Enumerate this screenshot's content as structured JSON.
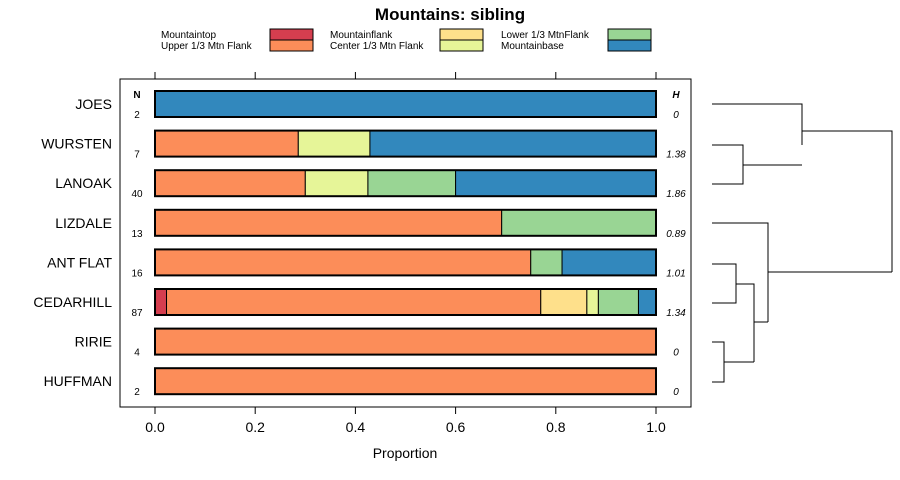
{
  "chart_data": {
    "type": "bar",
    "orientation": "horizontal",
    "stacked": true,
    "title": "Mountains: sibling",
    "xlabel": "Proportion",
    "ylabel": "",
    "xlim": [
      0,
      1
    ],
    "xticks": [
      0.0,
      0.2,
      0.4,
      0.6,
      0.8,
      1.0
    ],
    "xtick_labels": [
      "0.0",
      "0.2",
      "0.4",
      "0.6",
      "0.8",
      "1.0"
    ],
    "n_header": "N",
    "h_header": "H",
    "categories": [
      "JOES",
      "WURSTEN",
      "LANOAK",
      "LIZDALE",
      "ANT FLAT",
      "CEDARHILL",
      "RIRIE",
      "HUFFMAN"
    ],
    "n_values": [
      "2",
      "7",
      "40",
      "13",
      "16",
      "87",
      "4",
      "2"
    ],
    "h_values": [
      "0",
      "1.38",
      "1.86",
      "0.89",
      "1.01",
      "1.34",
      "0",
      "0"
    ],
    "series": [
      {
        "name": "Mountaintop",
        "color": "#d53e4f",
        "values": [
          0,
          0,
          0,
          0,
          0,
          0.023,
          0,
          0
        ]
      },
      {
        "name": "Upper 1/3 Mtn Flank",
        "color": "#fc8d59",
        "values": [
          0,
          0.286,
          0.3,
          0.692,
          0.75,
          0.747,
          1.0,
          1.0
        ]
      },
      {
        "name": "Mountainflank",
        "color": "#fee08b",
        "values": [
          0,
          0,
          0,
          0,
          0,
          0.092,
          0,
          0
        ]
      },
      {
        "name": "Center 1/3 Mtn Flank",
        "color": "#e6f598",
        "values": [
          0,
          0.143,
          0.125,
          0,
          0,
          0.023,
          0,
          0
        ]
      },
      {
        "name": "Lower 1/3 MtnFlank",
        "color": "#99d594",
        "values": [
          0,
          0,
          0.175,
          0.308,
          0.0625,
          0.08,
          0,
          0
        ]
      },
      {
        "name": "Mountainbase",
        "color": "#3288bd",
        "values": [
          1.0,
          0.571,
          0.4,
          0,
          0.1875,
          0.035,
          0,
          0
        ]
      }
    ],
    "legend_position": "top"
  }
}
